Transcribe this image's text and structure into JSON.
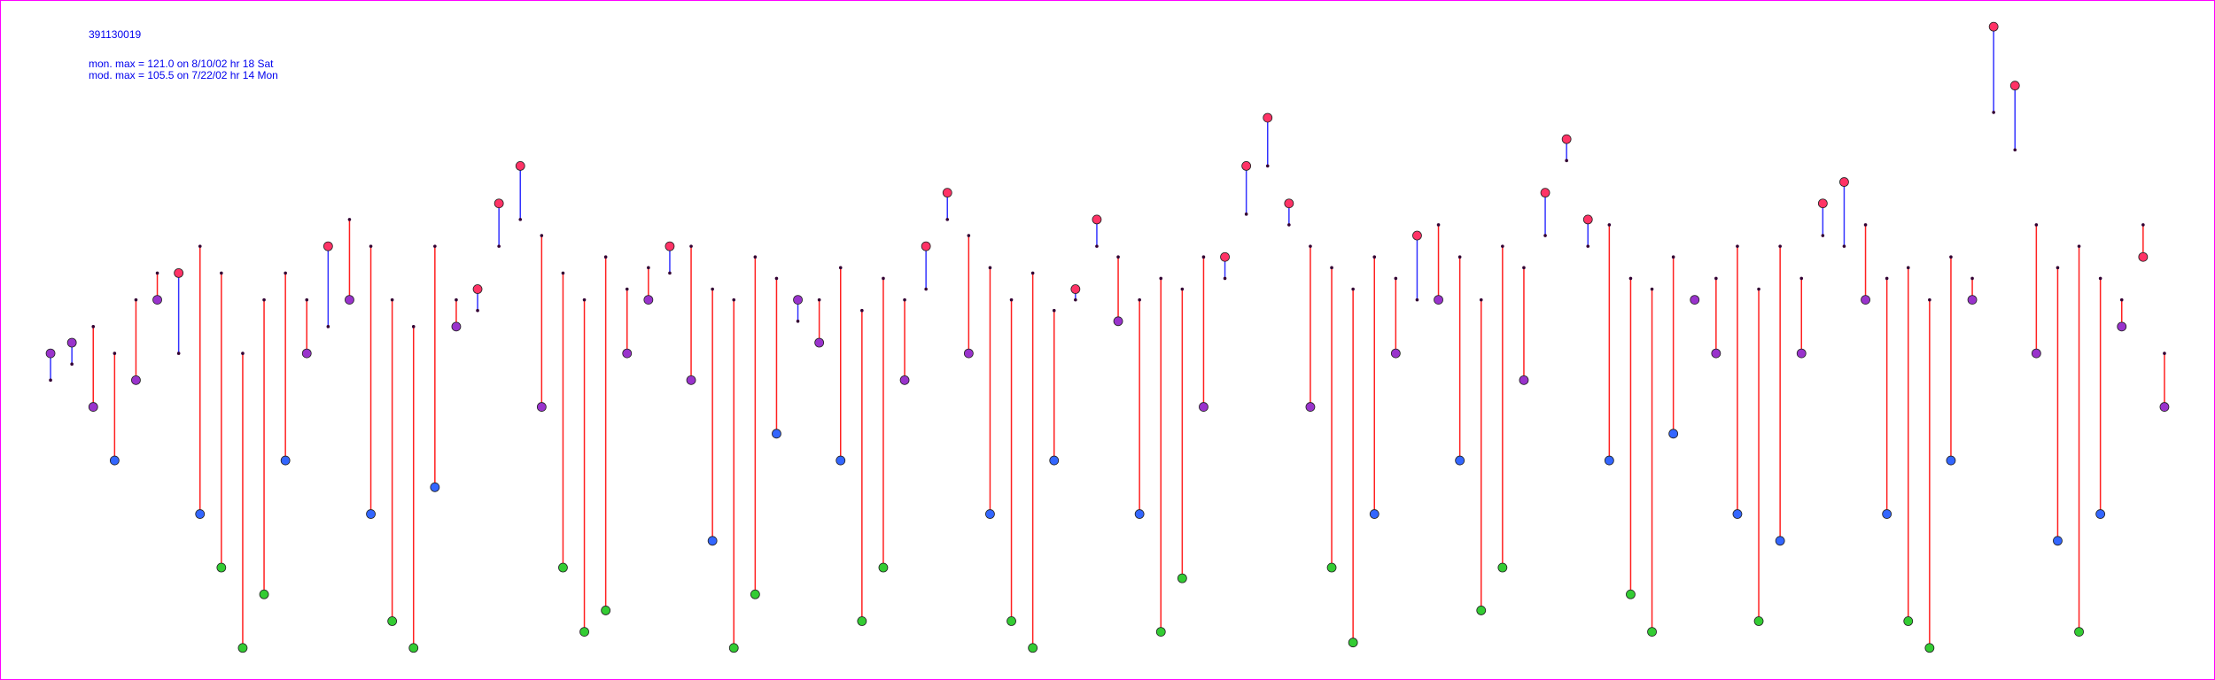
{
  "chart_data": {
    "type": "pairs",
    "title": "391130019",
    "annotations": [
      "mon. max =  121.0 on 8/10/02 hr 18 Sat",
      "mod. max =  105.5 on 7/22/02 hr 14 Mon"
    ],
    "ylim": [
      0,
      124
    ],
    "series": [
      {
        "color": "#3333ff",
        "values": [
          60,
          62,
          50,
          40,
          55,
          70,
          75,
          30,
          20,
          5,
          15,
          40,
          60,
          80,
          70,
          30,
          10,
          5,
          35,
          65,
          72,
          88,
          95,
          50,
          20,
          8,
          12,
          60,
          70,
          80,
          55,
          25,
          5,
          15,
          45,
          70,
          62,
          40,
          10,
          20,
          55,
          80,
          90,
          60,
          30,
          10,
          5,
          40,
          72,
          85,
          66,
          30,
          8,
          18,
          50,
          78,
          95,
          104,
          88,
          50,
          20,
          6,
          30,
          60,
          82,
          70,
          40,
          12,
          20,
          55,
          90,
          100,
          85,
          40,
          15,
          8,
          45,
          70,
          60,
          30,
          10,
          25,
          60,
          88,
          92,
          70,
          30,
          10,
          5,
          40,
          70,
          121,
          110,
          60,
          25,
          8,
          30,
          65,
          78,
          50
        ]
      },
      {
        "color": "#ff2020",
        "values": [
          55,
          58,
          65,
          60,
          70,
          75,
          60,
          80,
          75,
          60,
          70,
          75,
          70,
          65,
          85,
          80,
          70,
          65,
          80,
          70,
          68,
          80,
          85,
          82,
          75,
          70,
          78,
          72,
          76,
          75,
          80,
          72,
          70,
          78,
          74,
          66,
          70,
          76,
          68,
          74,
          70,
          72,
          85,
          82,
          76,
          70,
          75,
          68,
          70,
          80,
          78,
          70,
          74,
          72,
          78,
          74,
          86,
          95,
          84,
          80,
          76,
          72,
          78,
          74,
          70,
          84,
          78,
          70,
          80,
          76,
          82,
          96,
          80,
          84,
          74,
          72,
          78,
          70,
          74,
          80,
          72,
          80,
          74,
          82,
          80,
          84,
          74,
          76,
          70,
          78,
          74,
          105,
          98,
          84,
          76,
          80,
          74,
          70,
          84,
          60
        ]
      }
    ],
    "marker_colors": [
      "#33cc33",
      "#3366ff",
      "#9933cc",
      "#ff3366"
    ]
  }
}
